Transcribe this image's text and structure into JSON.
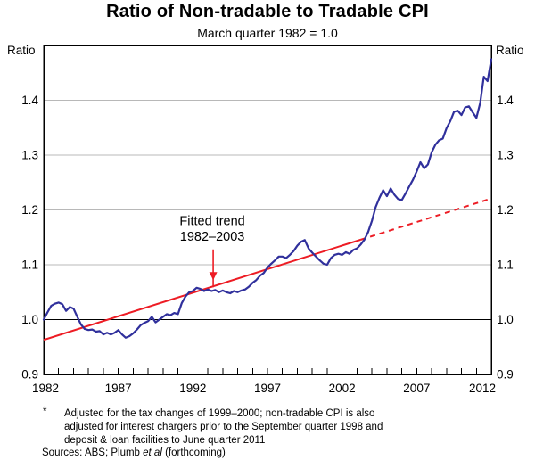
{
  "header": {
    "title": "Ratio of Non-tradable to Tradable CPI",
    "subtitle": "March quarter 1982 = 1.0"
  },
  "chart_data": {
    "type": "line",
    "title": "Ratio of Non-tradable to Tradable CPI",
    "subtitle": "March quarter 1982 = 1.0",
    "y_axis_label": "Ratio",
    "xlim": [
      1982,
      2012
    ],
    "ylim": [
      0.9,
      1.5
    ],
    "grid": "horizontal",
    "baseline_value": 1.0,
    "y_ticks": [
      1.4,
      1.3,
      1.2,
      1.1,
      1.0,
      0.9
    ],
    "y_tick_labels": [
      "1.4",
      "1.3",
      "1.2",
      "1.1",
      "1.0",
      "0.9"
    ],
    "x_major_ticks": [
      1982,
      1987,
      1992,
      1997,
      2002,
      2007,
      2012
    ],
    "x_major_tick_labels": [
      "1982",
      "1987",
      "1992",
      "1997",
      "2002",
      "2007",
      "2012"
    ],
    "x_minor_tick_step_years": 1,
    "colors": {
      "series": "#30309c",
      "trend": "#ed1c24",
      "grid": "#b8b8b8",
      "axis": "#000000"
    },
    "series": [
      {
        "name": "Ratio of non-tradable to tradable CPI (quarterly)",
        "color": "#30309c",
        "x_start": 1982.0,
        "x_step": 0.25,
        "values": [
          1.0,
          1.013,
          1.025,
          1.029,
          1.031,
          1.028,
          1.016,
          1.023,
          1.02,
          1.005,
          0.991,
          0.983,
          0.981,
          0.982,
          0.978,
          0.979,
          0.973,
          0.976,
          0.973,
          0.976,
          0.981,
          0.973,
          0.967,
          0.97,
          0.975,
          0.982,
          0.99,
          0.994,
          0.997,
          1.005,
          0.995,
          1.0,
          1.005,
          1.01,
          1.008,
          1.012,
          1.01,
          1.03,
          1.042,
          1.05,
          1.052,
          1.058,
          1.056,
          1.052,
          1.055,
          1.052,
          1.054,
          1.05,
          1.053,
          1.05,
          1.048,
          1.052,
          1.05,
          1.053,
          1.055,
          1.06,
          1.067,
          1.072,
          1.08,
          1.085,
          1.095,
          1.102,
          1.108,
          1.115,
          1.115,
          1.112,
          1.118,
          1.125,
          1.135,
          1.142,
          1.145,
          1.13,
          1.122,
          1.115,
          1.108,
          1.102,
          1.1,
          1.112,
          1.118,
          1.12,
          1.118,
          1.123,
          1.12,
          1.127,
          1.13,
          1.137,
          1.146,
          1.16,
          1.18,
          1.205,
          1.222,
          1.236,
          1.225,
          1.239,
          1.228,
          1.22,
          1.218,
          1.23,
          1.243,
          1.255,
          1.27,
          1.287,
          1.276,
          1.283,
          1.305,
          1.319,
          1.327,
          1.33,
          1.349,
          1.362,
          1.379,
          1.381,
          1.373,
          1.387,
          1.389,
          1.378,
          1.368,
          1.395,
          1.443,
          1.435,
          1.475
        ]
      },
      {
        "name": "Fitted trend 1982–2003 (extrapolated dashed)",
        "color": "#ed1c24",
        "trend": {
          "x0": 1982.0,
          "y0": 0.963,
          "x1": 2012.0,
          "y1": 1.221,
          "solid_until": 2003.25
        }
      }
    ],
    "annotation": {
      "lines": [
        "Fitted trend",
        "1982–2003"
      ],
      "color": "#ed1c24",
      "x_year": 1993.3,
      "line1_ratio": 1.172,
      "line2_ratio": 1.144,
      "arrow_from_ratio": 1.128,
      "arrow_to_ratio": 1.072
    }
  },
  "footnotes": {
    "star": "*",
    "note_lines": [
      "Adjusted for the tax changes of 1999–2000; non-tradable CPI is also",
      "adjusted for interest chargers prior to the September quarter 1998 and",
      "deposit & loan facilities to June quarter 2011"
    ],
    "sources_prefix": "Sources: ABS; Plumb ",
    "sources_italic": "et al",
    "sources_suffix": " (forthcoming)"
  }
}
